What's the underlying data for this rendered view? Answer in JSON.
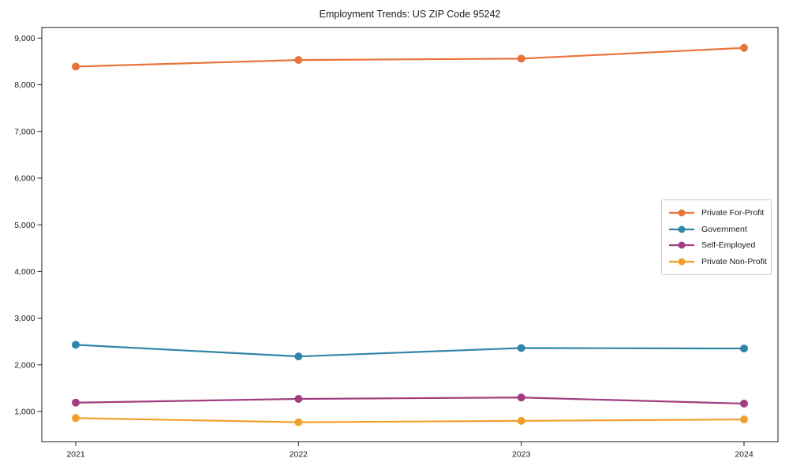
{
  "chart": {
    "title": "Employment Trends: US ZIP Code 95242"
  },
  "chart_data": {
    "type": "line",
    "title": "Employment Trends: US ZIP Code 95242",
    "xlabel": "",
    "ylabel": "",
    "x": [
      2021,
      2022,
      2023,
      2024
    ],
    "x_tick_labels": [
      "2021",
      "2022",
      "2023",
      "2024"
    ],
    "ylim": [
      350,
      9230
    ],
    "yticks": [
      {
        "value": 1000,
        "label": "1,000"
      },
      {
        "value": 2000,
        "label": "2,000"
      },
      {
        "value": 3000,
        "label": "3,000"
      },
      {
        "value": 4000,
        "label": "4,000"
      },
      {
        "value": 5000,
        "label": "5,000"
      },
      {
        "value": 6000,
        "label": "6,000"
      },
      {
        "value": 7000,
        "label": "7,000"
      },
      {
        "value": 8000,
        "label": "8,000"
      },
      {
        "value": 9000,
        "label": "9,000"
      }
    ],
    "grid": false,
    "legend_position": "center-right",
    "marker": "circle",
    "series": [
      {
        "name": "Private For-Profit",
        "color": "#e8743b",
        "values": [
          8390,
          8530,
          8560,
          8790
        ]
      },
      {
        "name": "Government",
        "color": "#3185a8",
        "values": [
          2430,
          2180,
          2360,
          2350
        ]
      },
      {
        "name": "Self-Employed",
        "color": "#a23d80",
        "values": [
          1190,
          1270,
          1300,
          1170
        ]
      },
      {
        "name": "Private Non-Profit",
        "color": "#f2a02d",
        "values": [
          860,
          770,
          800,
          830
        ]
      }
    ],
    "axis_color": "#222222",
    "tick_label_color": "#1a1a1a"
  }
}
